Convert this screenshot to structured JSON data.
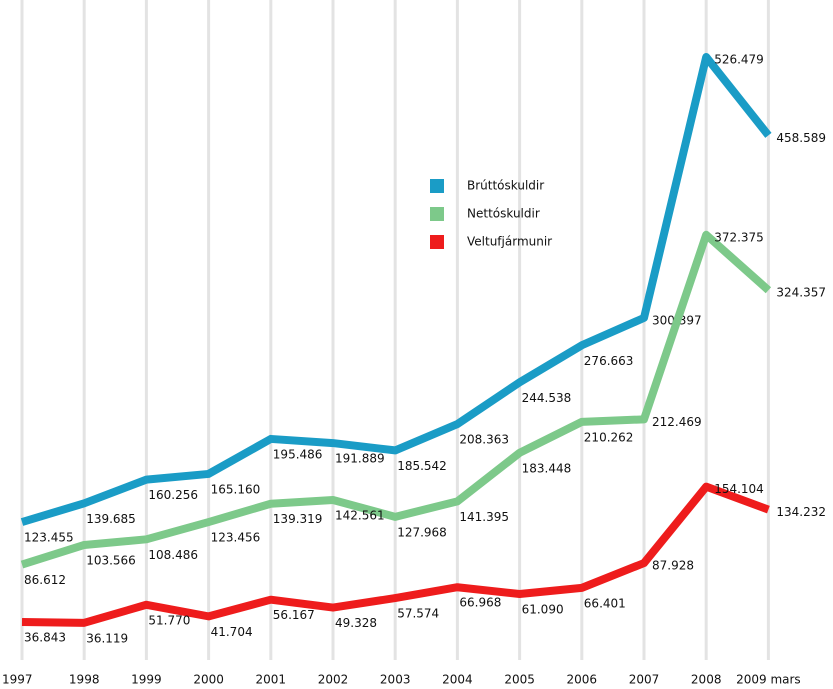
{
  "chart_data": {
    "type": "line",
    "categories": [
      "1997",
      "1998",
      "1999",
      "2000",
      "2001",
      "2002",
      "2003",
      "2004",
      "2005",
      "2006",
      "2007",
      "2008",
      "2009 mars"
    ],
    "grid": true,
    "legend": "upper center",
    "series": [
      {
        "name": "Brúttóskuldir",
        "color": "#1a9cc6",
        "values": [
          123455,
          139685,
          160256,
          165160,
          195486,
          191889,
          185542,
          208363,
          244538,
          276663,
          300397,
          526479,
          458589
        ],
        "value_labels": [
          "123.455",
          "139.685",
          "160.256",
          "165.160",
          "195.486",
          "191.889",
          "185.542",
          "208.363",
          "244.538",
          "276.663",
          "300.397",
          "526.479",
          "458.589"
        ]
      },
      {
        "name": "Nettóskuldir",
        "color": "#7dc98a",
        "values": [
          86612,
          103566,
          108486,
          123456,
          139319,
          142561,
          127968,
          141395,
          183448,
          210262,
          212469,
          372375,
          324357
        ],
        "value_labels": [
          "86.612",
          "103.566",
          "108.486",
          "123.456",
          "139.319",
          "142.561",
          "127.968",
          "141.395",
          "183.448",
          "210.262",
          "212.469",
          "372.375",
          "324.357"
        ]
      },
      {
        "name": "Veltufjármunir",
        "color": "#ee1c1c",
        "values": [
          36843,
          36119,
          51770,
          41704,
          56167,
          49328,
          57574,
          66968,
          61090,
          66401,
          87928,
          154104,
          134232
        ],
        "value_labels": [
          "36.843",
          "36.119",
          "51.770",
          "41.704",
          "56.167",
          "49.328",
          "57.574",
          "66.968",
          "61.090",
          "66.401",
          "87.928",
          "154.104",
          "134.232"
        ]
      }
    ]
  }
}
